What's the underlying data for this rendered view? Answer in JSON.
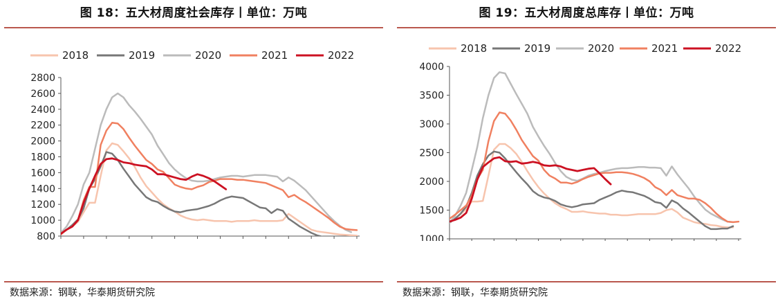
{
  "panels": [
    {
      "title": "图 18：五大材周度社会库存丨单位：万吨",
      "source": "数据来源：钢联，华泰期货研究院"
    },
    {
      "title": "图 19：五大材周度总库存丨单位：万吨",
      "source": "数据来源：钢联，华泰期货研究院"
    }
  ],
  "chart_data": [
    {
      "type": "line",
      "title": "图 18：五大材周度社会库存丨单位：万吨",
      "xlabel": "",
      "ylabel": "",
      "xlim": [
        1,
        53
      ],
      "ylim": [
        800,
        2800
      ],
      "xticks": [
        1,
        5,
        9,
        13,
        17,
        21,
        25,
        29,
        33,
        37,
        41,
        45,
        49,
        53
      ],
      "yticks": [
        800,
        1000,
        1200,
        1400,
        1600,
        1800,
        2000,
        2200,
        2400,
        2600,
        2800
      ],
      "legend": "top",
      "grid": false,
      "series": [
        {
          "name": "2018",
          "color": "#f7c4ad",
          "width": 2.5,
          "x": [
            1,
            2,
            3,
            4,
            5,
            6,
            7,
            8,
            9,
            10,
            11,
            12,
            13,
            14,
            15,
            16,
            17,
            18,
            19,
            20,
            21,
            22,
            23,
            24,
            25,
            26,
            27,
            28,
            29,
            30,
            31,
            32,
            33,
            34,
            35,
            36,
            37,
            38,
            39,
            40,
            41,
            42,
            43,
            44,
            45,
            46,
            47,
            48,
            49,
            50,
            51,
            52,
            53
          ],
          "y": [
            830,
            880,
            920,
            980,
            1100,
            1220,
            1220,
            1560,
            1880,
            1970,
            1950,
            1870,
            1780,
            1670,
            1540,
            1430,
            1350,
            1270,
            1200,
            1150,
            1110,
            1060,
            1030,
            1010,
            1000,
            1010,
            1000,
            990,
            990,
            990,
            980,
            990,
            990,
            990,
            1000,
            990,
            990,
            990,
            990,
            1000,
            1080,
            1030,
            980,
            930,
            880,
            860,
            850,
            840,
            830,
            820,
            815,
            810,
            805
          ]
        },
        {
          "name": "2019",
          "color": "#777777",
          "width": 2.5,
          "x": [
            1,
            2,
            3,
            4,
            5,
            6,
            7,
            8,
            9,
            10,
            11,
            12,
            13,
            14,
            15,
            16,
            17,
            18,
            19,
            20,
            21,
            22,
            23,
            24,
            25,
            26,
            27,
            28,
            29,
            30,
            31,
            32,
            33,
            34,
            35,
            36,
            37,
            38,
            39,
            40,
            41,
            42,
            43,
            44,
            45,
            46,
            47,
            48
          ],
          "y": [
            830,
            880,
            940,
            1010,
            1150,
            1400,
            1520,
            1680,
            1860,
            1840,
            1760,
            1650,
            1550,
            1450,
            1370,
            1290,
            1250,
            1230,
            1180,
            1140,
            1110,
            1100,
            1120,
            1130,
            1140,
            1160,
            1180,
            1210,
            1250,
            1280,
            1300,
            1290,
            1280,
            1240,
            1200,
            1160,
            1150,
            1090,
            1140,
            1120,
            1020,
            970,
            920,
            880,
            840,
            810,
            790,
            780
          ]
        },
        {
          "name": "2020",
          "color": "#bbbbbb",
          "width": 2.5,
          "x": [
            1,
            2,
            3,
            4,
            5,
            6,
            7,
            8,
            9,
            10,
            11,
            12,
            13,
            14,
            15,
            16,
            17,
            18,
            19,
            20,
            21,
            22,
            23,
            24,
            25,
            26,
            27,
            28,
            29,
            30,
            31,
            32,
            33,
            34,
            35,
            36,
            37,
            38,
            39,
            40,
            41,
            42,
            43,
            44,
            45,
            46,
            47,
            48,
            49,
            50,
            51,
            52
          ],
          "y": [
            840,
            920,
            1050,
            1200,
            1450,
            1600,
            1900,
            2200,
            2400,
            2550,
            2600,
            2550,
            2450,
            2370,
            2280,
            2180,
            2080,
            1940,
            1830,
            1720,
            1640,
            1580,
            1530,
            1500,
            1490,
            1490,
            1500,
            1520,
            1540,
            1550,
            1560,
            1560,
            1550,
            1560,
            1570,
            1570,
            1570,
            1560,
            1550,
            1490,
            1540,
            1500,
            1440,
            1380,
            1300,
            1220,
            1140,
            1060,
            990,
            930,
            880,
            850
          ]
        },
        {
          "name": "2021",
          "color": "#f08060",
          "width": 2.5,
          "x": [
            1,
            2,
            3,
            4,
            5,
            6,
            7,
            8,
            9,
            10,
            11,
            12,
            13,
            14,
            15,
            16,
            17,
            18,
            19,
            20,
            21,
            22,
            23,
            24,
            25,
            26,
            27,
            28,
            29,
            30,
            31,
            32,
            33,
            34,
            35,
            36,
            37,
            38,
            39,
            40,
            41,
            42,
            43,
            44,
            45,
            46,
            47,
            48,
            49,
            50,
            51,
            52,
            53
          ],
          "y": [
            820,
            880,
            920,
            1000,
            1250,
            1420,
            1420,
            1950,
            2130,
            2230,
            2220,
            2150,
            2040,
            1940,
            1850,
            1760,
            1710,
            1640,
            1610,
            1530,
            1450,
            1420,
            1400,
            1390,
            1420,
            1440,
            1480,
            1500,
            1520,
            1520,
            1520,
            1510,
            1510,
            1500,
            1490,
            1480,
            1470,
            1440,
            1410,
            1380,
            1290,
            1320,
            1270,
            1230,
            1180,
            1130,
            1080,
            1030,
            970,
            920,
            890,
            880,
            875
          ]
        },
        {
          "name": "2022",
          "color": "#cc1122",
          "width": 2.8,
          "x": [
            1,
            2,
            3,
            4,
            5,
            6,
            7,
            8,
            9,
            10,
            11,
            12,
            13,
            14,
            15,
            16,
            17,
            18,
            19,
            20,
            21,
            22,
            23,
            24,
            25,
            26,
            27,
            28,
            29,
            30
          ],
          "y": [
            830,
            880,
            920,
            1000,
            1220,
            1400,
            1560,
            1710,
            1770,
            1780,
            1760,
            1730,
            1720,
            1700,
            1690,
            1680,
            1640,
            1580,
            1580,
            1560,
            1540,
            1520,
            1510,
            1550,
            1580,
            1560,
            1530,
            1490,
            1440,
            1390
          ]
        }
      ]
    },
    {
      "type": "line",
      "title": "图 19：五大材周度总库存丨单位：万吨",
      "xlabel": "",
      "ylabel": "",
      "xlim": [
        1,
        53
      ],
      "ylim": [
        1000,
        4000
      ],
      "xticks": [
        1,
        5,
        9,
        13,
        17,
        21,
        25,
        29,
        33,
        37,
        41,
        45,
        49,
        53
      ],
      "yticks": [
        1000,
        1500,
        2000,
        2500,
        3000,
        3500,
        4000
      ],
      "legend": "top",
      "grid": false,
      "series": [
        {
          "name": "2018",
          "color": "#f7c4ad",
          "width": 2.5,
          "x": [
            1,
            2,
            3,
            4,
            5,
            6,
            7,
            8,
            9,
            10,
            11,
            12,
            13,
            14,
            15,
            16,
            17,
            18,
            19,
            20,
            21,
            22,
            23,
            24,
            25,
            26,
            27,
            28,
            29,
            30,
            31,
            32,
            33,
            34,
            35,
            36,
            37,
            38,
            39,
            40,
            41,
            42,
            43,
            44,
            45,
            46,
            47,
            48,
            49,
            50,
            51,
            52
          ],
          "y": [
            1280,
            1350,
            1430,
            1520,
            1650,
            1650,
            1660,
            2100,
            2550,
            2650,
            2650,
            2580,
            2480,
            2340,
            2180,
            2030,
            1900,
            1790,
            1700,
            1620,
            1560,
            1520,
            1470,
            1470,
            1480,
            1460,
            1450,
            1440,
            1440,
            1420,
            1420,
            1410,
            1410,
            1420,
            1430,
            1430,
            1430,
            1430,
            1450,
            1500,
            1520,
            1460,
            1370,
            1330,
            1290,
            1270,
            1260,
            1240,
            1230,
            1210,
            1200,
            1200
          ]
        },
        {
          "name": "2019",
          "color": "#777777",
          "width": 2.5,
          "x": [
            1,
            2,
            3,
            4,
            5,
            6,
            7,
            8,
            9,
            10,
            11,
            12,
            13,
            14,
            15,
            16,
            17,
            18,
            19,
            20,
            21,
            22,
            23,
            24,
            25,
            26,
            27,
            28,
            29,
            30,
            31,
            32,
            33,
            34,
            35,
            36,
            37,
            38,
            39,
            40,
            41,
            42,
            43,
            44,
            45,
            46,
            47,
            48,
            49,
            50,
            51,
            52
          ],
          "y": [
            1280,
            1350,
            1440,
            1560,
            1800,
            2100,
            2300,
            2450,
            2520,
            2500,
            2400,
            2280,
            2160,
            2050,
            1950,
            1830,
            1760,
            1720,
            1700,
            1660,
            1600,
            1570,
            1550,
            1570,
            1600,
            1610,
            1620,
            1680,
            1720,
            1760,
            1810,
            1840,
            1820,
            1810,
            1780,
            1750,
            1700,
            1640,
            1620,
            1540,
            1670,
            1620,
            1530,
            1460,
            1380,
            1300,
            1220,
            1170,
            1170,
            1180,
            1180,
            1220
          ]
        },
        {
          "name": "2020",
          "color": "#bbbbbb",
          "width": 2.5,
          "x": [
            1,
            2,
            3,
            4,
            5,
            6,
            7,
            8,
            9,
            10,
            11,
            12,
            13,
            14,
            15,
            16,
            17,
            18,
            19,
            20,
            21,
            22,
            23,
            24,
            25,
            26,
            27,
            28,
            29,
            30,
            31,
            32,
            33,
            34,
            35,
            36,
            37,
            38,
            39,
            40,
            41,
            42,
            43,
            44,
            45,
            46,
            47,
            48,
            49,
            50,
            51,
            52
          ],
          "y": [
            1280,
            1400,
            1580,
            1800,
            2200,
            2600,
            3100,
            3500,
            3800,
            3900,
            3880,
            3700,
            3520,
            3350,
            3180,
            2950,
            2780,
            2620,
            2480,
            2320,
            2180,
            2080,
            2030,
            2010,
            2050,
            2100,
            2130,
            2150,
            2180,
            2200,
            2220,
            2230,
            2230,
            2240,
            2250,
            2250,
            2240,
            2240,
            2230,
            2100,
            2260,
            2120,
            2000,
            1880,
            1740,
            1620,
            1510,
            1440,
            1390,
            1340,
            1300,
            1290
          ]
        },
        {
          "name": "2021",
          "color": "#f08060",
          "width": 2.5,
          "x": [
            1,
            2,
            3,
            4,
            5,
            6,
            7,
            8,
            9,
            10,
            11,
            12,
            13,
            14,
            15,
            16,
            17,
            18,
            19,
            20,
            21,
            22,
            23,
            24,
            25,
            26,
            27,
            28,
            29,
            30,
            31,
            32,
            33,
            34,
            35,
            36,
            37,
            38,
            39,
            40,
            41,
            42,
            43,
            44,
            45,
            46,
            47,
            48,
            49,
            50,
            51,
            52,
            53
          ],
          "y": [
            1350,
            1420,
            1500,
            1580,
            1750,
            2040,
            2200,
            2700,
            3050,
            3200,
            3180,
            3060,
            2900,
            2720,
            2580,
            2440,
            2360,
            2200,
            2100,
            2050,
            1980,
            1980,
            1960,
            1990,
            2040,
            2080,
            2110,
            2140,
            2150,
            2150,
            2160,
            2160,
            2150,
            2130,
            2100,
            2060,
            2000,
            1900,
            1850,
            1760,
            1850,
            1760,
            1730,
            1700,
            1700,
            1680,
            1620,
            1540,
            1440,
            1360,
            1300,
            1290,
            1300
          ]
        },
        {
          "name": "2022",
          "color": "#cc1122",
          "width": 2.8,
          "x": [
            1,
            2,
            3,
            4,
            5,
            6,
            7,
            8,
            9,
            10,
            11,
            12,
            13,
            14,
            15,
            16,
            17,
            18,
            19,
            20,
            21,
            22,
            23,
            24,
            25,
            26,
            27,
            28,
            29,
            30
          ],
          "y": [
            1300,
            1330,
            1370,
            1450,
            1700,
            2030,
            2250,
            2330,
            2400,
            2420,
            2350,
            2340,
            2350,
            2310,
            2320,
            2340,
            2320,
            2280,
            2270,
            2280,
            2260,
            2220,
            2200,
            2180,
            2200,
            2220,
            2230,
            2140,
            2040,
            1950
          ]
        }
      ]
    }
  ]
}
